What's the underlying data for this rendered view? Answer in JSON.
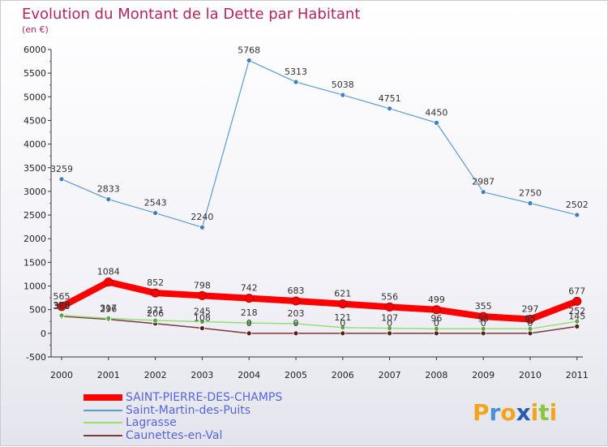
{
  "chart_data": {
    "type": "line",
    "title": "Evolution du Montant de la Dette par Habitant",
    "subtitle": "(en €)",
    "x": [
      "2000",
      "2001",
      "2002",
      "2003",
      "2004",
      "2005",
      "2006",
      "2007",
      "2008",
      "2009",
      "2010",
      "2011"
    ],
    "yticks": [
      -500,
      0,
      500,
      1000,
      1500,
      2000,
      2500,
      3000,
      3500,
      4000,
      4500,
      5000,
      5500,
      6000
    ],
    "ylim": [
      -500,
      6000
    ],
    "grid": false,
    "legend_position": "bottom-left",
    "series": [
      {
        "name": "SAINT-PIERRE-DES-CHAMPS",
        "color": "#ff0000",
        "values": [
          565,
          1084,
          852,
          798,
          742,
          683,
          621,
          556,
          499,
          355,
          297,
          677
        ]
      },
      {
        "name": "Saint-Martin-des-Puits",
        "color": "#5b9bd5",
        "values": [
          3259,
          2833,
          2543,
          2240,
          5768,
          5313,
          5038,
          4751,
          4450,
          2987,
          2750,
          2502
        ]
      },
      {
        "name": "Lagrasse",
        "color": "#99dd77",
        "values": [
          378,
          317,
          271,
          245,
          218,
          203,
          121,
          107,
          96,
          95,
          95,
          252
        ]
      },
      {
        "name": "Caunettes-en-Val",
        "color": "#7a3a3a",
        "values": [
          360,
          296,
          206,
          108,
          0,
          0,
          0,
          0,
          0,
          0,
          0,
          145
        ]
      }
    ]
  },
  "branding": {
    "logo_text": "Proxiti",
    "logo_colors": [
      "#f5a31a",
      "#4a90d9",
      "#f5a31a",
      "#2a5db0",
      "#f5a31a",
      "#8cc63f",
      "#f5a31a"
    ]
  }
}
